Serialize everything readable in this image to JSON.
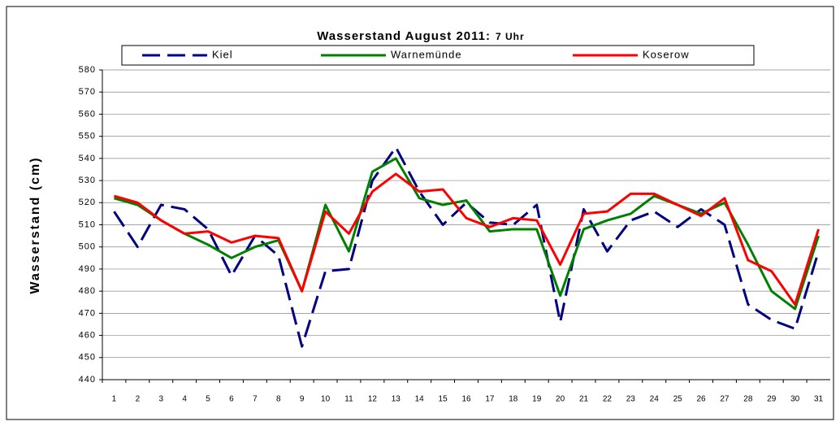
{
  "chart_data": {
    "type": "line",
    "title": "Wasserstand August 2011:",
    "subtitle": "7 Uhr",
    "ylabel": "Wasserstand (cm)",
    "categories": [
      "1",
      "2",
      "3",
      "4",
      "5",
      "6",
      "7",
      "8",
      "9",
      "10",
      "11",
      "12",
      "13",
      "14",
      "15",
      "16",
      "17",
      "18",
      "19",
      "20",
      "21",
      "22",
      "23",
      "24",
      "25",
      "26",
      "27",
      "28",
      "29",
      "30",
      "31"
    ],
    "series": [
      {
        "name": "Kiel",
        "color": "#000080",
        "dashed": true,
        "values": [
          516,
          500,
          519,
          517,
          508,
          487,
          505,
          496,
          455,
          489,
          490,
          530,
          545,
          525,
          510,
          520,
          511,
          510,
          519,
          466,
          517,
          498,
          512,
          516,
          509,
          517,
          510,
          474,
          467,
          463,
          498
        ]
      },
      {
        "name": "Warnemünde",
        "color": "#008000",
        "dashed": false,
        "values": [
          522,
          519,
          512,
          506,
          501,
          495,
          500,
          503,
          480,
          519,
          498,
          534,
          540,
          522,
          519,
          521,
          507,
          508,
          508,
          478,
          508,
          512,
          515,
          523,
          519,
          515,
          520,
          501,
          480,
          472,
          505
        ]
      },
      {
        "name": "Koserow",
        "color": "#ff0000",
        "dashed": false,
        "values": [
          523,
          520,
          512,
          506,
          507,
          502,
          505,
          504,
          480,
          516,
          506,
          525,
          533,
          525,
          526,
          513,
          509,
          513,
          512,
          492,
          515,
          516,
          524,
          524,
          519,
          514,
          522,
          494,
          489,
          474,
          508
        ]
      }
    ],
    "ylim": [
      440,
      580
    ],
    "yticks": [
      440,
      450,
      460,
      470,
      480,
      490,
      500,
      510,
      520,
      530,
      540,
      550,
      560,
      570,
      580
    ],
    "grid": true,
    "legend": "top"
  }
}
